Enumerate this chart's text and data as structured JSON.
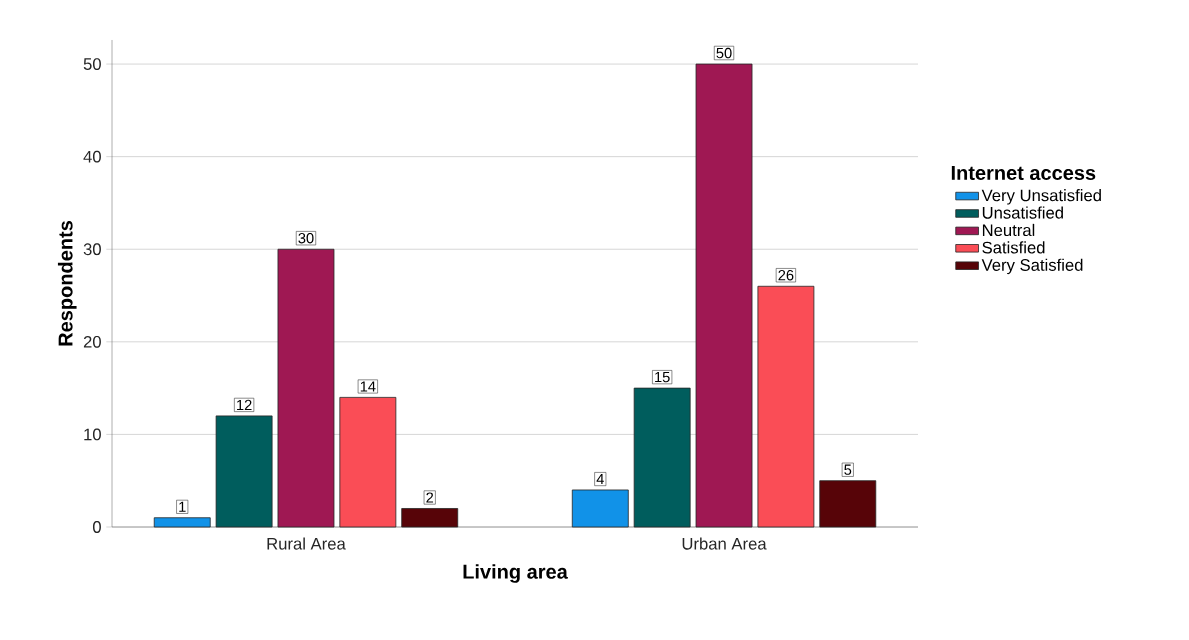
{
  "chart_data": {
    "type": "bar",
    "xlabel": "Living area",
    "ylabel": "Respondents",
    "legend_title": "Internet access",
    "categories": [
      "Rural Area",
      "Urban Area"
    ],
    "series": [
      {
        "name": "Very Unsatisfied",
        "color": "#1192e8",
        "values": [
          1,
          4
        ]
      },
      {
        "name": "Unsatisfied",
        "color": "#005d5d",
        "values": [
          12,
          15
        ]
      },
      {
        "name": "Neutral",
        "color": "#9f1853",
        "values": [
          30,
          50
        ]
      },
      {
        "name": "Satisfied",
        "color": "#fa4d56",
        "values": [
          14,
          26
        ]
      },
      {
        "name": "Very Satisfied",
        "color": "#570408",
        "values": [
          2,
          5
        ]
      }
    ],
    "ylim": [
      0,
      52.6
    ],
    "yticks": [
      0,
      10,
      20,
      30,
      40,
      50
    ],
    "grid": "y",
    "legend": "right",
    "data_labels": true
  }
}
